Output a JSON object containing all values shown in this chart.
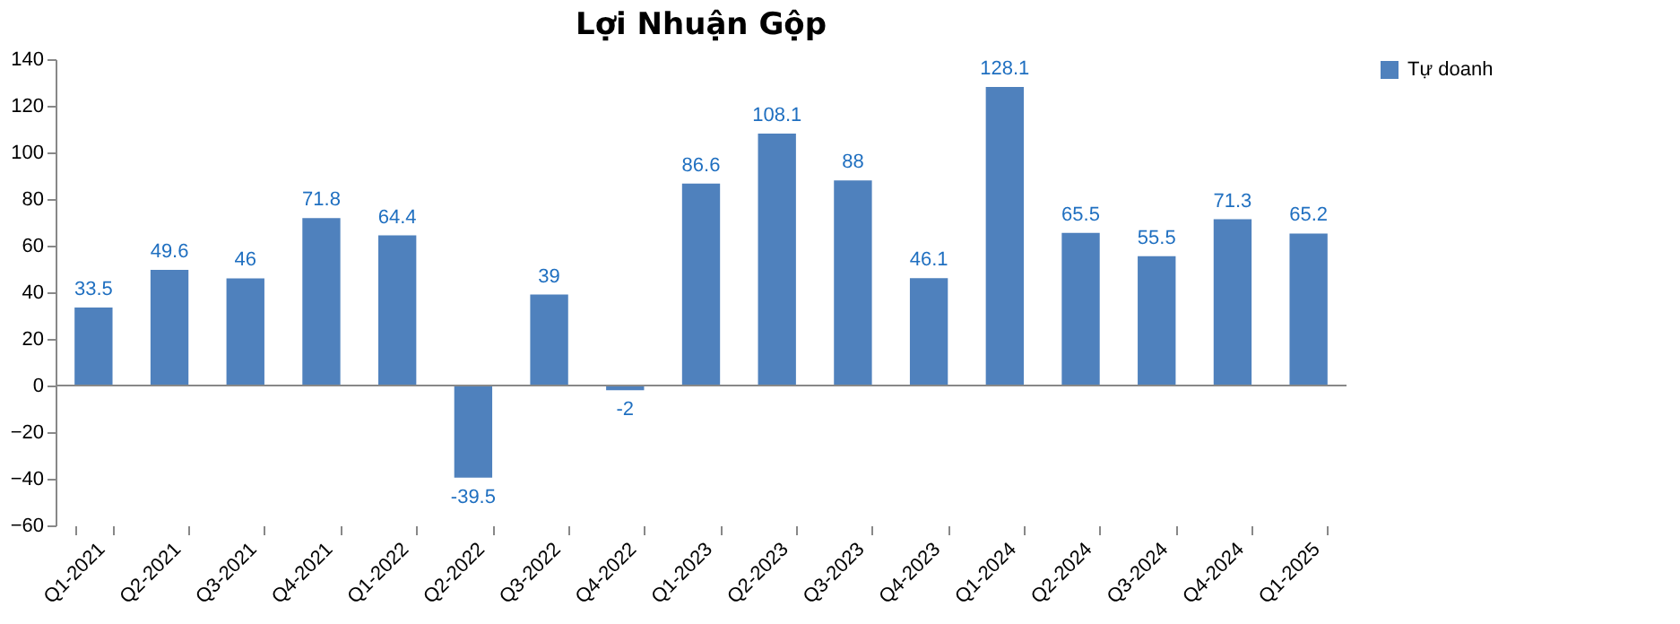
{
  "chart_data": {
    "type": "bar",
    "title": "Lợi Nhuận Gộp",
    "categories": [
      "Q1-2021",
      "Q2-2021",
      "Q3-2021",
      "Q4-2021",
      "Q1-2022",
      "Q2-2022",
      "Q3-2022",
      "Q4-2022",
      "Q1-2023",
      "Q2-2023",
      "Q3-2023",
      "Q4-2023",
      "Q1-2024",
      "Q2-2024",
      "Q3-2024",
      "Q4-2024",
      "Q1-2025"
    ],
    "series": [
      {
        "name": "Tự doanh",
        "color": "#4f81bd",
        "values": [
          33.5,
          49.6,
          46,
          71.8,
          64.4,
          -39.5,
          39,
          -2,
          86.6,
          108.1,
          88,
          46.1,
          128.1,
          65.5,
          55.5,
          71.3,
          65.2
        ]
      }
    ],
    "ylim": [
      -60,
      140
    ],
    "yticks": [
      -60,
      -40,
      -20,
      0,
      20,
      40,
      60,
      80,
      100,
      120,
      140
    ],
    "legend": "right",
    "data_labels": true
  }
}
